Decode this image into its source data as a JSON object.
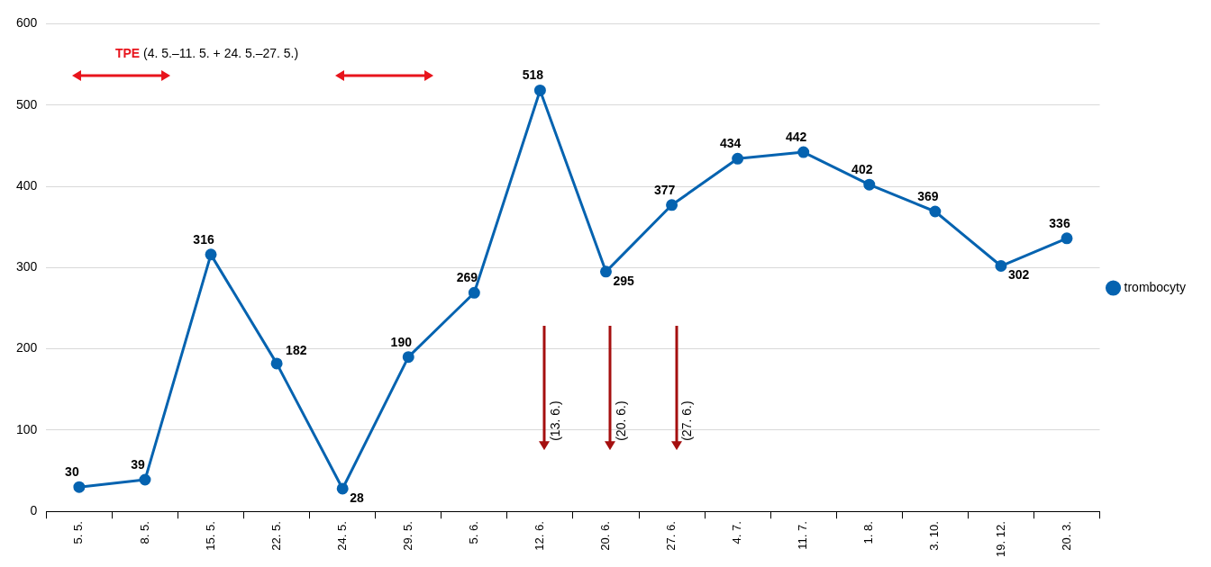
{
  "chart_data": {
    "type": "line",
    "categories": [
      "5. 5.",
      "8. 5.",
      "15. 5.",
      "22. 5.",
      "24. 5.",
      "29. 5.",
      "5. 6.",
      "12. 6.",
      "20. 6.",
      "27. 6.",
      "4. 7.",
      "11. 7.",
      "1. 8.",
      "3. 10.",
      "19. 12.",
      "20. 3."
    ],
    "series": [
      {
        "name": "trombocyty",
        "color": "#0563b0",
        "values": [
          30,
          39,
          316,
          182,
          28,
          190,
          269,
          518,
          295,
          377,
          434,
          442,
          402,
          369,
          302,
          336
        ]
      }
    ],
    "ylim": [
      0,
      600
    ],
    "yticks": [
      0,
      100,
      200,
      300,
      400,
      500,
      600
    ],
    "grid": "y",
    "legend": "right",
    "marker": "circle",
    "line_style": "solid",
    "data_labels": true,
    "annotations": [
      "TPE (4. 5.–11. 5. + 24. 5.–27. 5.)",
      "(13. 6.)",
      "(20. 6.)",
      "(27. 6.)"
    ]
  }
}
